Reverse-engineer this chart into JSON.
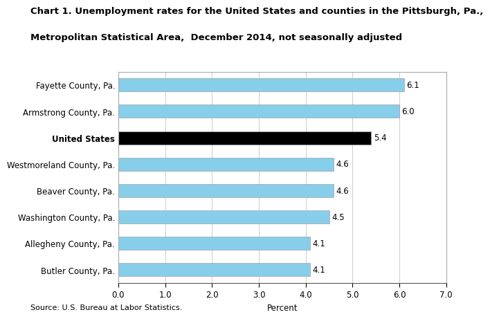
{
  "title_line1": "Chart 1. Unemployment rates for the United States and counties in the Pittsburgh, Pa.,",
  "title_line2": "Metropolitan Statistical Area,  December 2014, not seasonally adjusted",
  "categories": [
    "Fayette County, Pa.",
    "Armstrong County, Pa.",
    "United States",
    "Westmoreland County, Pa.",
    "Beaver County, Pa.",
    "Washington County, Pa.",
    "Allegheny County, Pa.",
    "Butler County, Pa."
  ],
  "values": [
    6.1,
    6.0,
    5.4,
    4.6,
    4.6,
    4.5,
    4.1,
    4.1
  ],
  "bar_colors": [
    "#87CEEB",
    "#87CEEB",
    "#000000",
    "#87CEEB",
    "#87CEEB",
    "#87CEEB",
    "#87CEEB",
    "#87CEEB"
  ],
  "xlabel": "Percent",
  "xlim": [
    0,
    7.0
  ],
  "xticks": [
    0.0,
    1.0,
    2.0,
    3.0,
    4.0,
    5.0,
    6.0,
    7.0
  ],
  "source": "Source: U.S. Bureau at Labor Statistics.",
  "background_color": "#ffffff",
  "grid_color": "#d0d0d0",
  "bar_edge_color": "#a0a0a0",
  "title_fontsize": 9.5,
  "label_fontsize": 8.5,
  "tick_fontsize": 8.5,
  "value_fontsize": 8.5,
  "source_fontsize": 8,
  "bar_height": 0.5
}
